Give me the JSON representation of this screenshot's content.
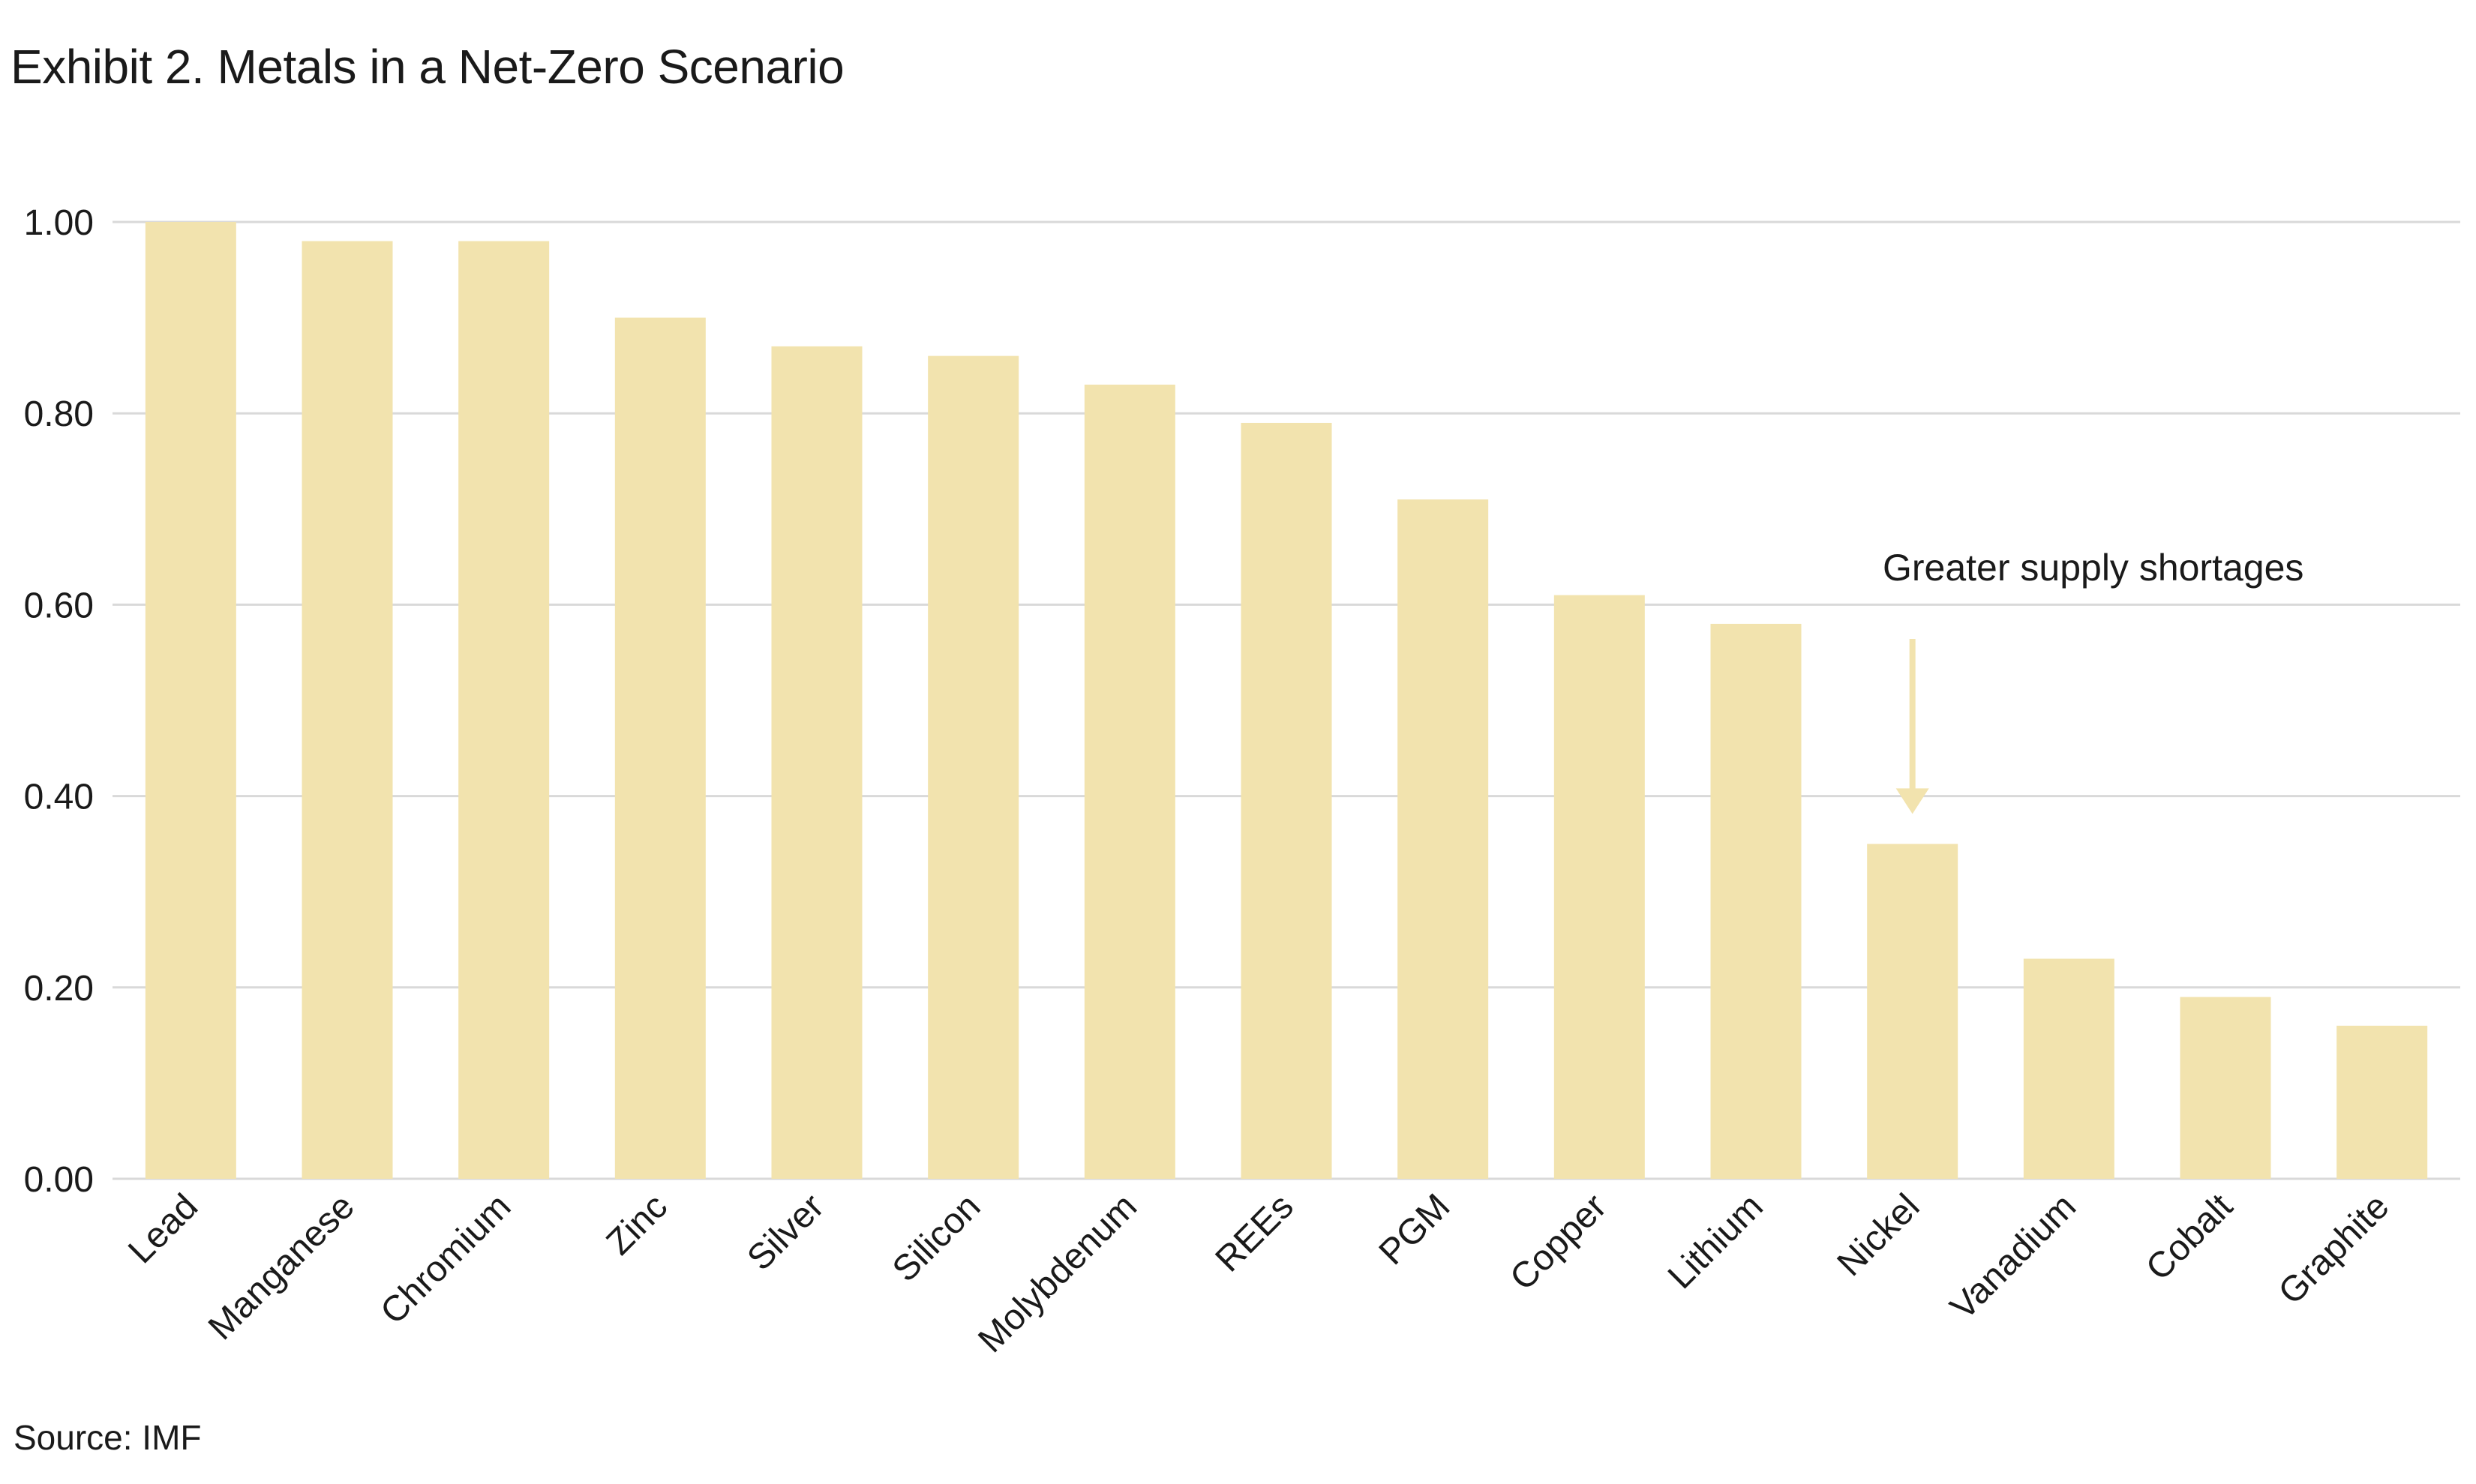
{
  "chart_data": {
    "type": "bar",
    "title": "Exhibit 2. Metals in a Net-Zero Scenario",
    "categories": [
      "Lead",
      "Manganese",
      "Chromium",
      "Zinc",
      "Silver",
      "Silicon",
      "Molybdenum",
      "REEs",
      "PGM",
      "Copper",
      "Lithium",
      "Nickel",
      "Vanadium",
      "Cobalt",
      "Graphite"
    ],
    "values": [
      1.0,
      0.98,
      0.98,
      0.9,
      0.87,
      0.86,
      0.83,
      0.79,
      0.71,
      0.61,
      0.58,
      0.35,
      0.23,
      0.19,
      0.16
    ],
    "ylim": [
      0,
      1.0
    ],
    "yticks": [
      "0.00",
      "0.20",
      "0.40",
      "0.60",
      "0.80",
      "1.00"
    ],
    "ytick_values": [
      0,
      0.2,
      0.4,
      0.6,
      0.8,
      1.0
    ],
    "grid": true,
    "legend": "none",
    "bar_color": "#f2e3ae",
    "grid_color": "#d9d9d9",
    "annotation": {
      "text": "Greater supply shortages",
      "target_category": "Nickel"
    }
  },
  "source": "Source: IMF"
}
